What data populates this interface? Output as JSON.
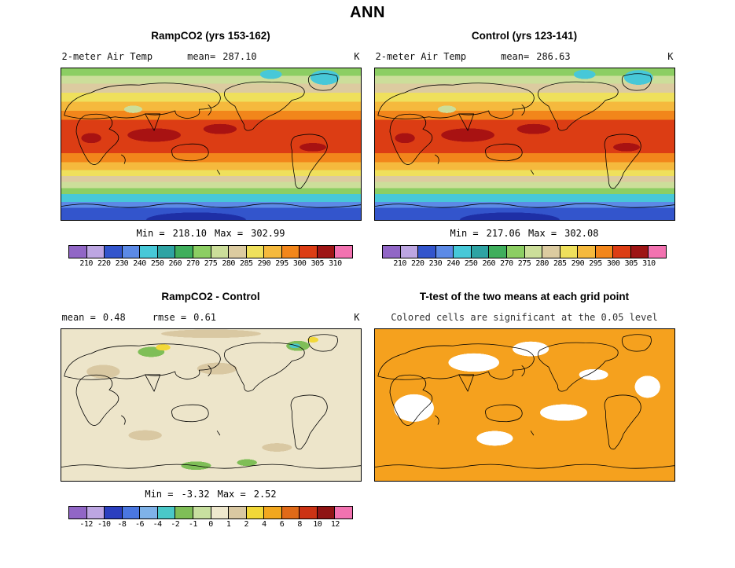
{
  "title": "ANN",
  "panels": {
    "ramp": {
      "title": "RampCO2 (yrs 153-162)",
      "var_label": "2-meter Air Temp",
      "mean_label": "mean=",
      "mean_value": "287.10",
      "units": "K",
      "min_label": "Min =",
      "min_value": "218.10",
      "max_label": "Max =",
      "max_value": "302.99"
    },
    "control": {
      "title": "Control (yrs 123-141)",
      "var_label": "2-meter Air Temp",
      "mean_label": "mean=",
      "mean_value": "286.63",
      "units": "K",
      "min_label": "Min =",
      "min_value": "217.06",
      "max_label": "Max =",
      "max_value": "302.08"
    },
    "diff": {
      "title": "RampCO2 - Control",
      "mean_label": "mean =",
      "mean_value": "0.48",
      "rmse_label": "rmse =",
      "rmse_value": "0.61",
      "units": "K",
      "min_label": "Min =",
      "min_value": "-3.32",
      "max_label": "Max =",
      "max_value": "2.52"
    },
    "ttest": {
      "title": "T-test of the two means at each grid point",
      "subtitle": "Colored cells are significant at the 0.05 level"
    }
  },
  "colorbars": {
    "temp": {
      "ticks": [
        "210",
        "220",
        "230",
        "240",
        "250",
        "260",
        "270",
        "275",
        "280",
        "285",
        "290",
        "295",
        "300",
        "305",
        "310"
      ],
      "colors": [
        "#9166C6",
        "#BDA6E2",
        "#3355CC",
        "#5C8AE6",
        "#47C8D8",
        "#2EA3A3",
        "#3FAE5C",
        "#8CCE63",
        "#CCDE9A",
        "#DCCBA0",
        "#EFE05C",
        "#F5B93D",
        "#F2861B",
        "#DC3D14",
        "#9E1515",
        "#F272B0"
      ]
    },
    "diff": {
      "ticks": [
        "-12",
        "-10",
        "-8",
        "-6",
        "-4",
        "-2",
        "-1",
        "0",
        "1",
        "2",
        "4",
        "6",
        "8",
        "10",
        "12"
      ],
      "colors": [
        "#9166C6",
        "#BDA6E2",
        "#2B3FBF",
        "#4A77E0",
        "#7FB2E8",
        "#4AC8C8",
        "#7FBE57",
        "#C8E0A0",
        "#EFE8CE",
        "#D9C8A2",
        "#F2D838",
        "#F2A71E",
        "#E06A18",
        "#CC3314",
        "#8F1414",
        "#F272B0"
      ]
    }
  },
  "chart_data": [
    {
      "type": "heatmap",
      "title": "RampCO2 (yrs 153-162)",
      "variable": "2-meter Air Temp",
      "units": "K",
      "season": "ANN",
      "mean": 287.1,
      "min": 218.1,
      "max": 302.99,
      "colorbar_levels": [
        210,
        220,
        230,
        240,
        250,
        260,
        270,
        275,
        280,
        285,
        290,
        295,
        300,
        305,
        310
      ],
      "layout": "global latitude-longitude contour map, warm colors in tropics, cool colors at poles, legend colorbar below"
    },
    {
      "type": "heatmap",
      "title": "Control (yrs 123-141)",
      "variable": "2-meter Air Temp",
      "units": "K",
      "season": "ANN",
      "mean": 286.63,
      "min": 217.06,
      "max": 302.08,
      "colorbar_levels": [
        210,
        220,
        230,
        240,
        250,
        260,
        270,
        275,
        280,
        285,
        290,
        295,
        300,
        305,
        310
      ],
      "layout": "global latitude-longitude contour map, warm colors in tropics, cool colors at poles, legend colorbar below"
    },
    {
      "type": "heatmap",
      "title": "RampCO2 - Control",
      "variable": "2-meter Air Temp difference",
      "units": "K",
      "season": "ANN",
      "mean": 0.48,
      "rmse": 0.61,
      "min": -3.32,
      "max": 2.52,
      "colorbar_levels": [
        -12,
        -10,
        -8,
        -6,
        -4,
        -2,
        -1,
        0,
        1,
        2,
        4,
        6,
        8,
        10,
        12
      ],
      "layout": "global difference map, mostly beige near zero with green negative patches and yellow positive spots, legend colorbar below"
    },
    {
      "type": "heatmap",
      "title": "T-test of the two means at each grid point",
      "subtitle": "Colored cells are significant at the 0.05 level",
      "significance_level": 0.05,
      "significant_color": "#F5A11E",
      "layout": "global map, orange cells significant, white cells not significant, no colorbar"
    }
  ]
}
